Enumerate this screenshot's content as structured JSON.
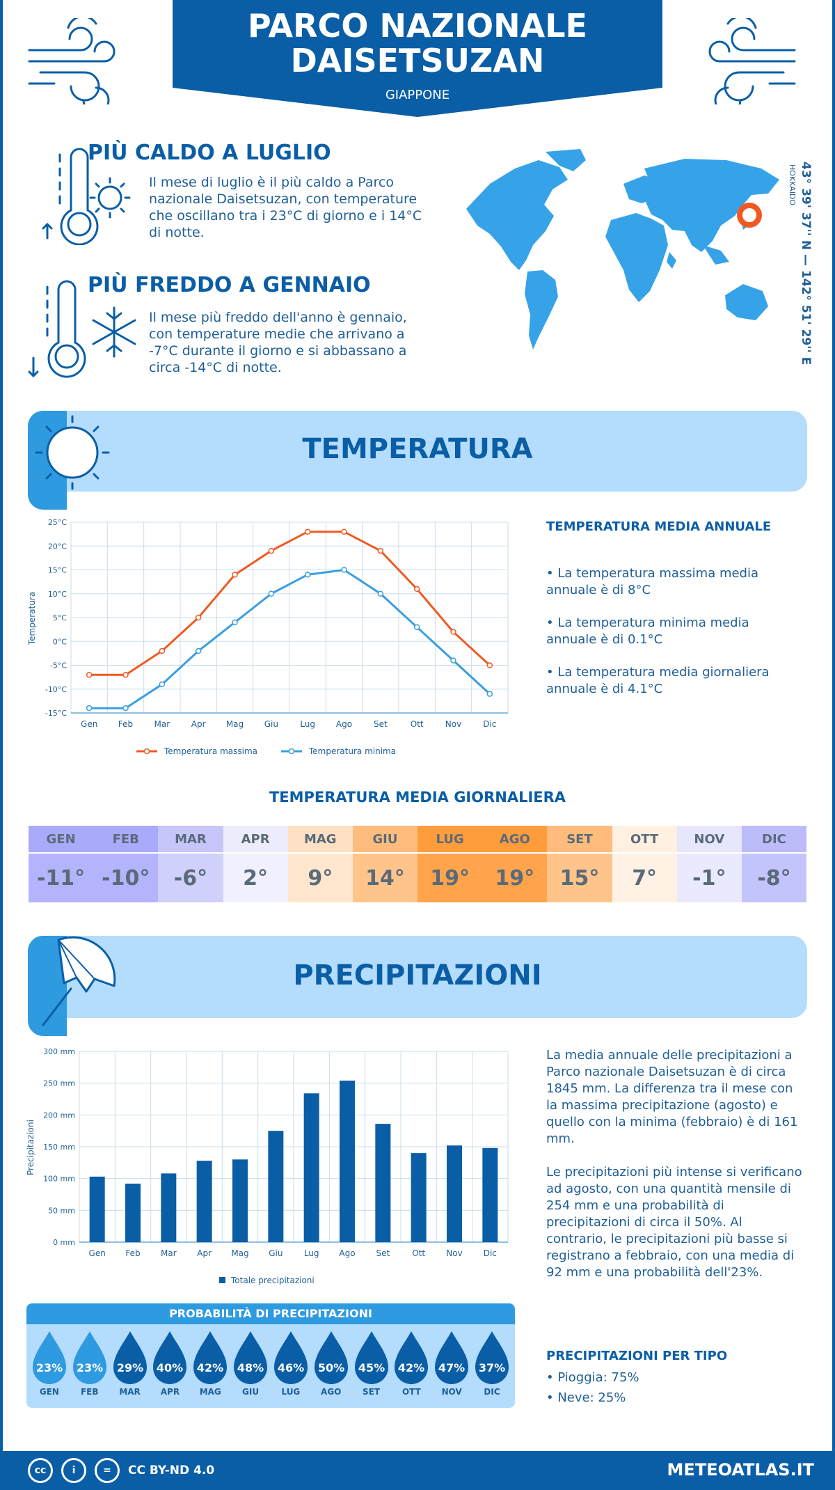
{
  "header": {
    "title_line1": "PARCO NAZIONALE",
    "title_line2": "DAISETSUZAN",
    "country": "GIAPPONE"
  },
  "facts": {
    "warmest": {
      "title": "PIÙ CALDO A LUGLIO",
      "text": "Il mese di luglio è il più caldo a Parco nazionale Daisetsuzan, con temperature che oscillano tra i 23°C di giorno e i 14°C di notte."
    },
    "coldest": {
      "title": "PIÙ FREDDO A GENNAIO",
      "text": "Il mese più freddo dell'anno è gennaio, con temperature medie che arrivano a -7°C durante il giorno e si abbassano a circa -14°C di notte."
    }
  },
  "location": {
    "coords": "43° 39' 37'' N — 142° 51' 29'' E",
    "region": "HOKKAIDO"
  },
  "temperature_section": {
    "title": "TEMPERATURA",
    "side_title": "TEMPERATURA MEDIA ANNUALE",
    "bullets": [
      "• La temperatura massima media annuale è di 8°C",
      "• La temperatura minima media annuale è di 0.1°C",
      "• La temperatura media giornaliera annuale è di 4.1°C"
    ]
  },
  "daily_avg": {
    "title": "TEMPERATURA MEDIA GIORNALIERA",
    "months": [
      "GEN",
      "FEB",
      "MAR",
      "APR",
      "MAG",
      "GIU",
      "LUG",
      "AGO",
      "SET",
      "OTT",
      "NOV",
      "DIC"
    ],
    "values": [
      "-11°",
      "-10°",
      "-6°",
      "2°",
      "9°",
      "14°",
      "19°",
      "19°",
      "15°",
      "7°",
      "-1°",
      "-8°"
    ],
    "header_colors": [
      "#aaaafa",
      "#aaaafa",
      "#c6c6fa",
      "#ececfc",
      "#fee0c4",
      "#ffbc7c",
      "#ff9c3c",
      "#ff9c3c",
      "#ffbc7c",
      "#fff0e2",
      "#e6e6fc",
      "#bcbcfa"
    ],
    "value_colors": [
      "#b4b4fc",
      "#b4b4fc",
      "#d0d0fc",
      "#f0f0fe",
      "#ffe6cc",
      "#ffc48a",
      "#ffa44c",
      "#ffa44c",
      "#ffc48a",
      "#fff2e4",
      "#eaeafe",
      "#c4c4fc"
    ]
  },
  "precip_section": {
    "title": "PRECIPITAZIONI",
    "text1": "La media annuale delle precipitazioni a Parco nazionale Daisetsuzan è di circa 1845 mm. La differenza tra il mese con la massima precipitazione (agosto) e quello con la minima (febbraio) è di 161 mm.",
    "text2": "Le precipitazioni più intense si verificano ad agosto, con una quantità mensile di 254 mm e una probabilità di precipitazioni di circa il 50%. Al contrario, le precipitazioni più basse si registrano a febbraio, con una media di 92 mm e una probabilità dell'23%.",
    "type_title": "PRECIPITAZIONI PER TIPO",
    "types": [
      "• Pioggia: 75%",
      "• Neve: 25%"
    ]
  },
  "probability": {
    "title": "PROBABILITÀ DI PRECIPITAZIONI",
    "months": [
      "GEN",
      "FEB",
      "MAR",
      "APR",
      "MAG",
      "GIU",
      "LUG",
      "AGO",
      "SET",
      "OTT",
      "NOV",
      "DIC"
    ],
    "values": [
      "23%",
      "23%",
      "29%",
      "40%",
      "42%",
      "48%",
      "46%",
      "50%",
      "45%",
      "42%",
      "47%",
      "37%"
    ],
    "colors": [
      "#2e9ae0",
      "#2e9ae0",
      "#0a5ea6",
      "#0a5ea6",
      "#0a5ea6",
      "#0a5ea6",
      "#0a5ea6",
      "#0a5ea6",
      "#0a5ea6",
      "#0a5ea6",
      "#0a5ea6",
      "#0a5ea6"
    ]
  },
  "footer": {
    "license": "CC BY-ND 4.0",
    "site": "METEOATLAS.IT"
  },
  "colors": {
    "primary": "#0a5ea6",
    "light_band": "#b4dcfc",
    "accent_blue": "#2e9ae0",
    "max_line": "#f05a22",
    "min_line": "#3a9ee0",
    "marker": "#f05a22"
  },
  "chart_data": [
    {
      "type": "line",
      "categories": [
        "Gen",
        "Feb",
        "Mar",
        "Apr",
        "Mag",
        "Giu",
        "Lug",
        "Ago",
        "Set",
        "Ott",
        "Nov",
        "Dic"
      ],
      "series": [
        {
          "name": "Temperatura massima",
          "values": [
            -7,
            -7,
            -2,
            5,
            14,
            19,
            23,
            23,
            19,
            11,
            2,
            -5
          ]
        },
        {
          "name": "Temperatura minima",
          "values": [
            -14,
            -14,
            -9,
            -2,
            4,
            10,
            14,
            15,
            10,
            3,
            -4,
            -11
          ]
        }
      ],
      "ylabel": "Temperatura",
      "ylim": [
        -15,
        25
      ],
      "yticks": [
        "-15°C",
        "-10°C",
        "-5°C",
        "0°C",
        "5°C",
        "10°C",
        "15°C",
        "20°C",
        "25°C"
      ],
      "grid": true,
      "legend": "bottom"
    },
    {
      "type": "bar",
      "categories": [
        "Gen",
        "Feb",
        "Mar",
        "Apr",
        "Mag",
        "Giu",
        "Lug",
        "Ago",
        "Set",
        "Ott",
        "Nov",
        "Dic"
      ],
      "series": [
        {
          "name": "Totale precipitazioni",
          "values": [
            103,
            92,
            108,
            128,
            130,
            175,
            234,
            254,
            186,
            140,
            152,
            148
          ]
        }
      ],
      "ylabel": "Precipitazioni",
      "ylim": [
        0,
        300
      ],
      "yticks": [
        "0 mm",
        "50 mm",
        "100 mm",
        "150 mm",
        "200 mm",
        "250 mm",
        "300 mm"
      ],
      "grid": true,
      "legend": "bottom"
    }
  ]
}
